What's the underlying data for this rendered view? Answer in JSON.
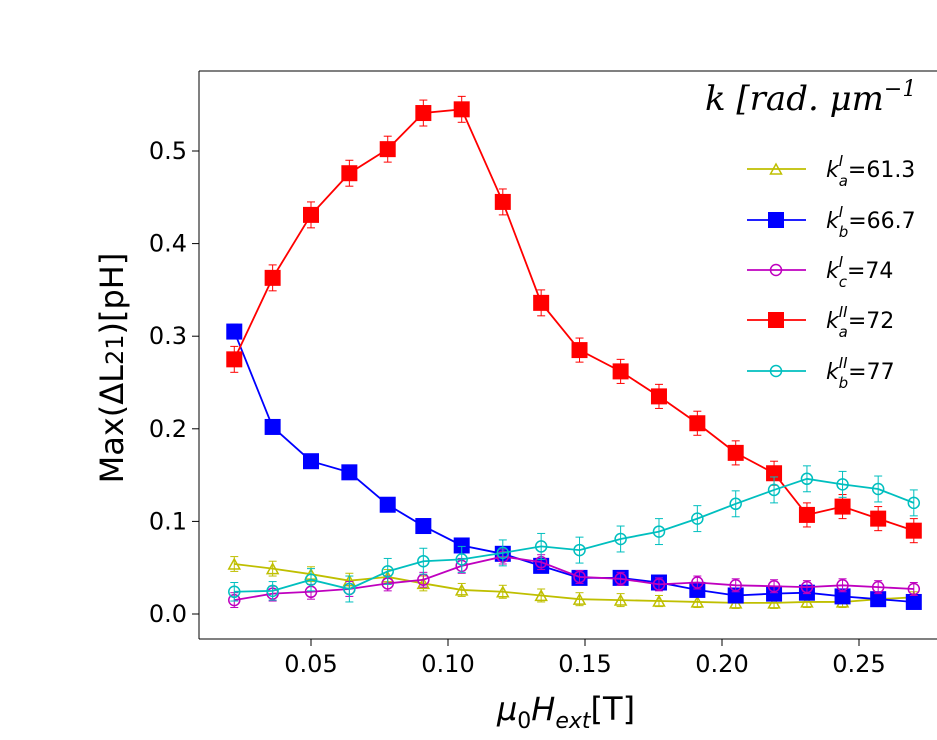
{
  "chart_data": {
    "type": "line",
    "xlabel": "μ0Hext[T]",
    "xlabel_parts": {
      "mu": "μ",
      "mu_sub": "0",
      "h": "H",
      "h_sub": "ext",
      "unit": "[T]"
    },
    "ylabel": "Max(ΔL21)[pH]",
    "ylabel_parts": {
      "prefix": "Max(ΔL",
      "sub": "21",
      "suffix": ")[pH]"
    },
    "xlim": [
      0.012,
      0.27
    ],
    "ylim": [
      -0.025,
      0.59
    ],
    "xticks": [
      0.05,
      0.1,
      0.15,
      0.2,
      0.25
    ],
    "xtick_labels": [
      "0.05",
      "0.10",
      "0.15",
      "0.20",
      "0.25"
    ],
    "yticks": [
      0.0,
      0.1,
      0.2,
      0.3,
      0.4,
      0.5
    ],
    "ytick_labels": [
      "0.0",
      "0.1",
      "0.2",
      "0.3",
      "0.4",
      "0.5"
    ],
    "grid": false,
    "legend": {
      "placement": "top-right",
      "title": "k [rad. μm",
      "title_superscript": "−1"
    },
    "x": [
      0.022,
      0.036,
      0.05,
      0.064,
      0.078,
      0.091,
      0.105,
      0.12,
      0.134,
      0.148,
      0.163,
      0.177,
      0.191,
      0.205,
      0.219,
      0.231,
      0.244,
      0.257,
      0.27
    ],
    "series": [
      {
        "name": "k_a^I=61.3",
        "label_k": "k",
        "label_sup": "I",
        "label_sub": "a",
        "label_val": "=61.3",
        "color": "#bfbf00",
        "marker": "triangle-open",
        "values": [
          0.054,
          0.049,
          0.043,
          0.036,
          0.04,
          0.033,
          0.026,
          0.024,
          0.02,
          0.016,
          0.015,
          0.014,
          0.013,
          0.012,
          0.012,
          0.013,
          0.013,
          0.016,
          0.018
        ],
        "errors": [
          0.008,
          0.008,
          0.008,
          0.008,
          0.008,
          0.008,
          0.007,
          0.007,
          0.007,
          0.007,
          0.007,
          0.006,
          0.006,
          0.006,
          0.006,
          0.006,
          0.006,
          0.006,
          0.006
        ]
      },
      {
        "name": "k_b^I=66.7",
        "label_k": "k",
        "label_sup": "I",
        "label_sub": "b",
        "label_val": "=66.7",
        "color": "#0000ff",
        "marker": "square-filled",
        "values": [
          0.305,
          0.202,
          0.165,
          0.153,
          0.118,
          0.095,
          0.074,
          0.065,
          0.052,
          0.039,
          0.039,
          0.034,
          0.026,
          0.02,
          0.022,
          0.023,
          0.019,
          0.016,
          0.013
        ],
        "errors": [
          0.008,
          0.007,
          0.007,
          0.007,
          0.007,
          0.007,
          0.007,
          0.007,
          0.007,
          0.007,
          0.007,
          0.006,
          0.006,
          0.006,
          0.006,
          0.006,
          0.006,
          0.006,
          0.006
        ]
      },
      {
        "name": "k_c^I=74",
        "label_k": "k",
        "label_sup": "I",
        "label_sub": "c",
        "label_val": "=74",
        "color": "#bf00bf",
        "marker": "circle-open",
        "values": [
          0.015,
          0.022,
          0.024,
          0.027,
          0.033,
          0.037,
          0.052,
          0.062,
          0.056,
          0.04,
          0.038,
          0.032,
          0.034,
          0.031,
          0.03,
          0.029,
          0.031,
          0.029,
          0.027
        ],
        "errors": [
          0.008,
          0.008,
          0.008,
          0.008,
          0.008,
          0.008,
          0.008,
          0.008,
          0.008,
          0.007,
          0.007,
          0.007,
          0.007,
          0.007,
          0.007,
          0.007,
          0.007,
          0.007,
          0.007
        ]
      },
      {
        "name": "k_a^II=72",
        "label_k": "k",
        "label_sup": "II",
        "label_sub": "a",
        "label_val": "=72",
        "color": "#ff0000",
        "marker": "square-filled",
        "values": [
          0.275,
          0.363,
          0.431,
          0.476,
          0.502,
          0.541,
          0.545,
          0.445,
          0.336,
          0.285,
          0.262,
          0.235,
          0.206,
          0.174,
          0.152,
          0.107,
          0.116,
          0.103,
          0.09
        ],
        "errors": [
          0.014,
          0.014,
          0.014,
          0.014,
          0.014,
          0.014,
          0.014,
          0.014,
          0.014,
          0.013,
          0.013,
          0.013,
          0.013,
          0.013,
          0.013,
          0.013,
          0.013,
          0.013,
          0.013
        ]
      },
      {
        "name": "k_b^II=77",
        "label_k": "k",
        "label_sup": "II",
        "label_sub": "b",
        "label_val": "=77",
        "color": "#00bfbf",
        "marker": "circle-open",
        "values": [
          0.024,
          0.025,
          0.037,
          0.027,
          0.046,
          0.057,
          0.059,
          0.066,
          0.073,
          0.069,
          0.081,
          0.089,
          0.103,
          0.119,
          0.134,
          0.146,
          0.14,
          0.135,
          0.12
        ],
        "errors": [
          0.01,
          0.01,
          0.012,
          0.014,
          0.014,
          0.014,
          0.014,
          0.014,
          0.014,
          0.014,
          0.014,
          0.014,
          0.014,
          0.014,
          0.014,
          0.014,
          0.014,
          0.014,
          0.014
        ]
      }
    ]
  }
}
